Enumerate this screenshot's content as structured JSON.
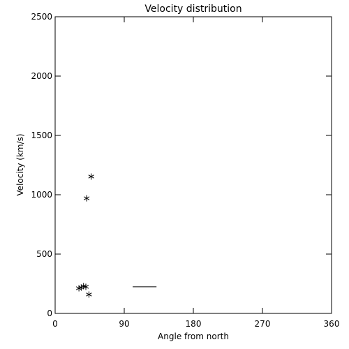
{
  "chart_data": {
    "type": "scatter",
    "title": "Velocity distribution",
    "x_label": "Angle from north",
    "y_label": "Velocity (km/s)",
    "xlim": [
      0,
      360
    ],
    "xticks": [
      0,
      90,
      180,
      270,
      360
    ],
    "ylim": [
      0,
      2500
    ],
    "yticks": [
      0,
      500,
      1000,
      1500,
      2000,
      2500
    ],
    "series": [
      {
        "color": "#000000",
        "marker": "asterisk",
        "x": [
          31,
          34,
          37,
          40,
          41,
          44,
          47
        ],
        "values": [
          212,
          218,
          230,
          224,
          970,
          159,
          1153
        ]
      },
      {
        "color": "#000000",
        "marker": "none",
        "x": [
          101,
          132
        ],
        "values": [
          224,
          224
        ]
      }
    ]
  }
}
